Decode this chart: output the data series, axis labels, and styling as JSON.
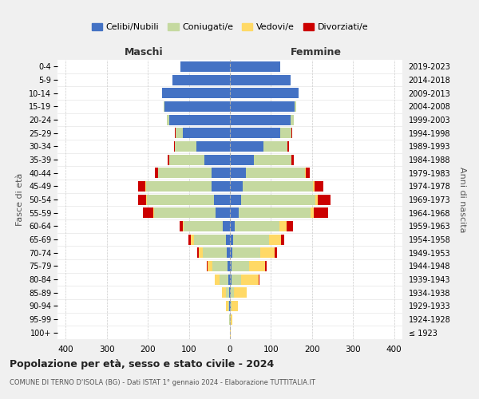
{
  "age_groups": [
    "100+",
    "95-99",
    "90-94",
    "85-89",
    "80-84",
    "75-79",
    "70-74",
    "65-69",
    "60-64",
    "55-59",
    "50-54",
    "45-49",
    "40-44",
    "35-39",
    "30-34",
    "25-29",
    "20-24",
    "15-19",
    "10-14",
    "5-9",
    "0-4"
  ],
  "birth_years": [
    "≤ 1923",
    "1924-1928",
    "1929-1933",
    "1934-1938",
    "1939-1943",
    "1944-1948",
    "1949-1953",
    "1954-1958",
    "1959-1963",
    "1964-1968",
    "1969-1973",
    "1974-1978",
    "1979-1983",
    "1984-1988",
    "1989-1993",
    "1994-1998",
    "1999-2003",
    "2004-2008",
    "2009-2013",
    "2014-2018",
    "2019-2023"
  ],
  "colors": {
    "celibi": "#4472c4",
    "coniugati": "#c5d9a0",
    "vedovi": "#ffd966",
    "divorziati": "#cc0000"
  },
  "male": {
    "celibi": [
      0,
      0,
      1,
      2,
      3,
      5,
      8,
      10,
      18,
      35,
      38,
      45,
      45,
      62,
      82,
      115,
      148,
      160,
      165,
      140,
      120
    ],
    "coniugati": [
      0,
      1,
      3,
      8,
      22,
      38,
      58,
      78,
      95,
      150,
      165,
      160,
      130,
      85,
      52,
      18,
      6,
      2,
      0,
      0,
      0
    ],
    "vedovi": [
      0,
      1,
      5,
      10,
      12,
      12,
      10,
      8,
      2,
      2,
      2,
      1,
      0,
      0,
      0,
      0,
      0,
      0,
      0,
      0,
      0
    ],
    "divorziati": [
      0,
      0,
      0,
      0,
      0,
      2,
      3,
      5,
      8,
      25,
      18,
      18,
      8,
      5,
      3,
      1,
      0,
      0,
      0,
      0,
      0
    ]
  },
  "female": {
    "celibi": [
      0,
      0,
      1,
      2,
      3,
      4,
      5,
      8,
      12,
      22,
      28,
      32,
      38,
      58,
      82,
      122,
      148,
      158,
      168,
      148,
      122
    ],
    "coniugati": [
      0,
      1,
      3,
      8,
      25,
      42,
      68,
      88,
      108,
      175,
      180,
      170,
      145,
      92,
      58,
      28,
      8,
      3,
      0,
      0,
      0
    ],
    "vedovi": [
      1,
      5,
      15,
      30,
      42,
      40,
      36,
      28,
      18,
      8,
      5,
      4,
      2,
      0,
      0,
      0,
      0,
      0,
      0,
      0,
      0
    ],
    "divorziati": [
      0,
      0,
      0,
      0,
      2,
      3,
      5,
      8,
      15,
      35,
      32,
      22,
      10,
      6,
      3,
      1,
      0,
      0,
      0,
      0,
      0
    ]
  },
  "title": "Popolazione per età, sesso e stato civile - 2024",
  "subtitle": "COMUNE DI TERNO D'ISOLA (BG) - Dati ISTAT 1° gennaio 2024 - Elaborazione TUTTITALIA.IT",
  "label_maschi": "Maschi",
  "label_femmine": "Femmine",
  "ylabel_left": "Fasce di età",
  "ylabel_right": "Anni di nascita",
  "xlim": 420,
  "legend_labels": [
    "Celibi/Nubili",
    "Coniugati/e",
    "Vedovi/e",
    "Divorziati/e"
  ],
  "bg_color": "#f0f0f0",
  "plot_bg": "#ffffff"
}
